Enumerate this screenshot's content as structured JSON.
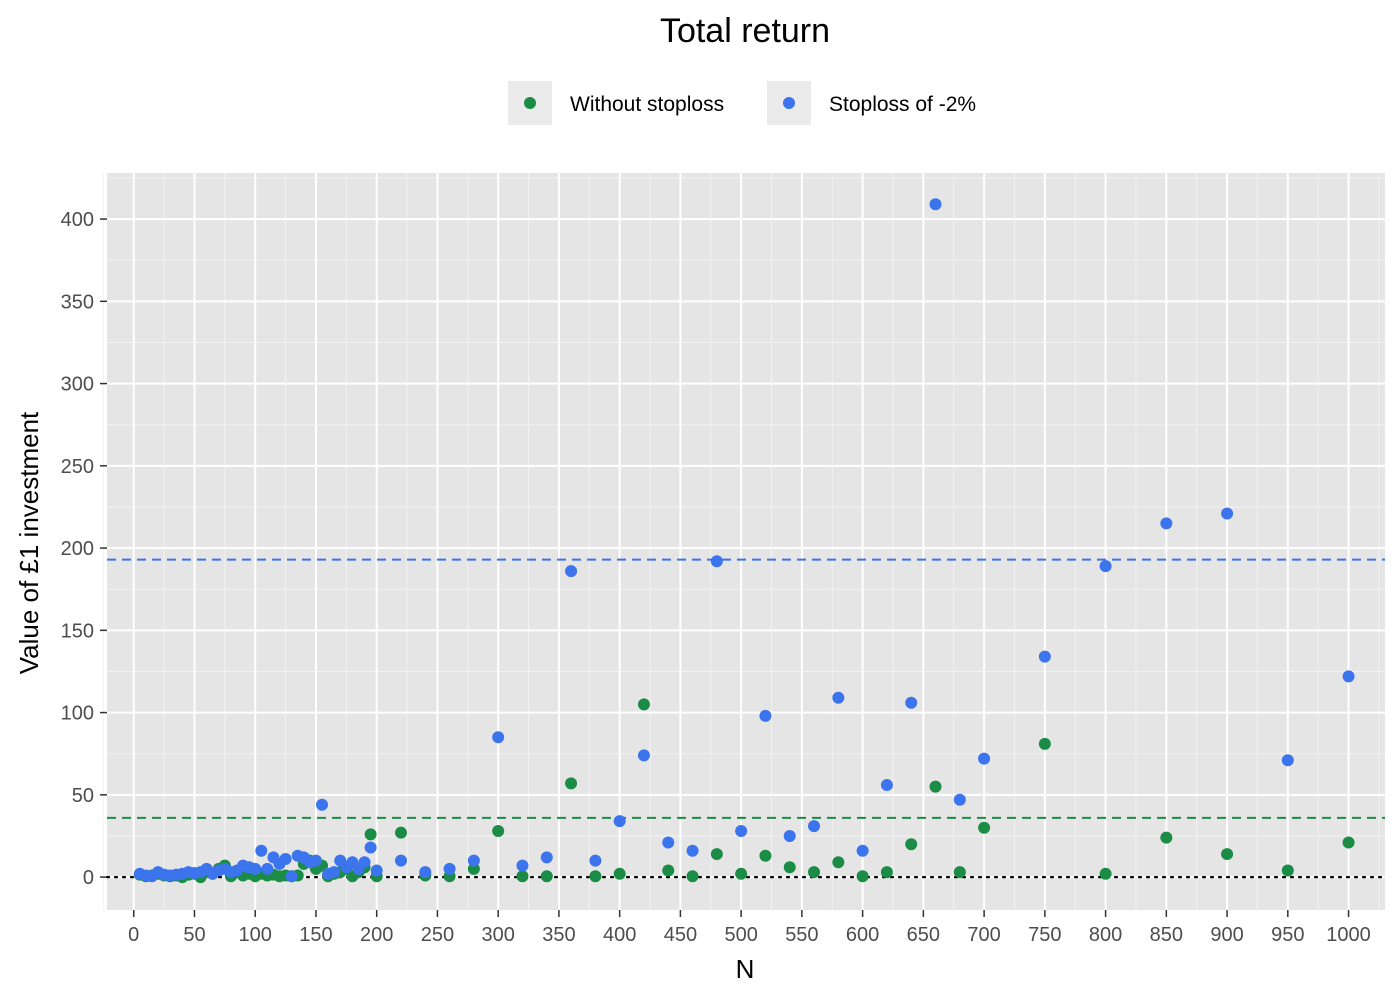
{
  "chart_data": {
    "type": "scatter",
    "title": "Total return",
    "xlabel": "N",
    "ylabel": "Value of £1 investment",
    "xlim": [
      -22,
      1030
    ],
    "ylim": [
      -20,
      428
    ],
    "x_ticks": [
      0,
      50,
      100,
      150,
      200,
      250,
      300,
      350,
      400,
      450,
      500,
      550,
      600,
      650,
      700,
      750,
      800,
      850,
      900,
      950,
      1000
    ],
    "y_ticks": [
      0,
      50,
      100,
      150,
      200,
      250,
      300,
      350,
      400
    ],
    "grid": true,
    "legend_position": "top",
    "background_color": "#e5e5e5",
    "series": [
      {
        "name": "Without stoploss",
        "color": "#1b8c45",
        "mean_line": 36,
        "points": [
          [
            5,
            1.5
          ],
          [
            10,
            0.5
          ],
          [
            15,
            1
          ],
          [
            20,
            2
          ],
          [
            25,
            1
          ],
          [
            30,
            0.5
          ],
          [
            35,
            1
          ],
          [
            40,
            0
          ],
          [
            45,
            1.5
          ],
          [
            50,
            2
          ],
          [
            55,
            0
          ],
          [
            60,
            3
          ],
          [
            65,
            2
          ],
          [
            70,
            5
          ],
          [
            75,
            7
          ],
          [
            80,
            0.5
          ],
          [
            85,
            3
          ],
          [
            90,
            1
          ],
          [
            95,
            2
          ],
          [
            100,
            0.5
          ],
          [
            105,
            2
          ],
          [
            110,
            1
          ],
          [
            115,
            1.5
          ],
          [
            120,
            0.5
          ],
          [
            125,
            1
          ],
          [
            130,
            0.5
          ],
          [
            135,
            1
          ],
          [
            140,
            8
          ],
          [
            145,
            10
          ],
          [
            150,
            5
          ],
          [
            155,
            7
          ],
          [
            160,
            0.5
          ],
          [
            165,
            2
          ],
          [
            170,
            3
          ],
          [
            175,
            5
          ],
          [
            180,
            0.5
          ],
          [
            185,
            3
          ],
          [
            190,
            6
          ],
          [
            195,
            26
          ],
          [
            200,
            0.5
          ],
          [
            220,
            27
          ],
          [
            240,
            1
          ],
          [
            260,
            0.5
          ],
          [
            280,
            5
          ],
          [
            300,
            28
          ],
          [
            320,
            0.5
          ],
          [
            340,
            0.5
          ],
          [
            360,
            57
          ],
          [
            380,
            0.5
          ],
          [
            400,
            2
          ],
          [
            420,
            105
          ],
          [
            440,
            4
          ],
          [
            460,
            0.5
          ],
          [
            480,
            14
          ],
          [
            500,
            2
          ],
          [
            520,
            13
          ],
          [
            540,
            6
          ],
          [
            560,
            3
          ],
          [
            580,
            9
          ],
          [
            600,
            0.5
          ],
          [
            620,
            3
          ],
          [
            640,
            20
          ],
          [
            660,
            55
          ],
          [
            680,
            3
          ],
          [
            700,
            30
          ],
          [
            750,
            81
          ],
          [
            800,
            2
          ],
          [
            850,
            24
          ],
          [
            900,
            14
          ],
          [
            950,
            4
          ],
          [
            1000,
            21
          ]
        ]
      },
      {
        "name": "Stoploss of -2%",
        "color": "#3c74ee",
        "mean_line": 193,
        "points": [
          [
            5,
            2
          ],
          [
            10,
            1
          ],
          [
            15,
            0.5
          ],
          [
            20,
            3
          ],
          [
            25,
            1.5
          ],
          [
            30,
            1
          ],
          [
            35,
            1.5
          ],
          [
            40,
            2
          ],
          [
            45,
            3
          ],
          [
            50,
            2.5
          ],
          [
            55,
            3
          ],
          [
            60,
            5
          ],
          [
            65,
            2
          ],
          [
            70,
            4
          ],
          [
            75,
            5
          ],
          [
            80,
            3
          ],
          [
            85,
            4
          ],
          [
            90,
            7
          ],
          [
            95,
            6
          ],
          [
            100,
            5
          ],
          [
            105,
            16
          ],
          [
            110,
            5
          ],
          [
            115,
            12
          ],
          [
            120,
            8
          ],
          [
            125,
            11
          ],
          [
            130,
            0.5
          ],
          [
            135,
            13
          ],
          [
            140,
            12
          ],
          [
            145,
            9
          ],
          [
            150,
            10
          ],
          [
            155,
            44
          ],
          [
            160,
            2
          ],
          [
            165,
            3
          ],
          [
            170,
            10
          ],
          [
            175,
            6
          ],
          [
            180,
            9
          ],
          [
            185,
            5
          ],
          [
            190,
            9
          ],
          [
            195,
            18
          ],
          [
            200,
            4
          ],
          [
            220,
            10
          ],
          [
            240,
            3
          ],
          [
            260,
            5
          ],
          [
            280,
            10
          ],
          [
            300,
            85
          ],
          [
            320,
            7
          ],
          [
            340,
            12
          ],
          [
            360,
            186
          ],
          [
            380,
            10
          ],
          [
            400,
            34
          ],
          [
            420,
            74
          ],
          [
            440,
            21
          ],
          [
            460,
            16
          ],
          [
            480,
            192
          ],
          [
            500,
            28
          ],
          [
            520,
            98
          ],
          [
            540,
            25
          ],
          [
            560,
            31
          ],
          [
            580,
            109
          ],
          [
            600,
            16
          ],
          [
            620,
            56
          ],
          [
            640,
            106
          ],
          [
            660,
            409
          ],
          [
            680,
            47
          ],
          [
            700,
            72
          ],
          [
            750,
            134
          ],
          [
            800,
            189
          ],
          [
            850,
            215
          ],
          [
            900,
            221
          ],
          [
            950,
            71
          ],
          [
            1000,
            122
          ]
        ]
      }
    ],
    "baseline": 0
  }
}
